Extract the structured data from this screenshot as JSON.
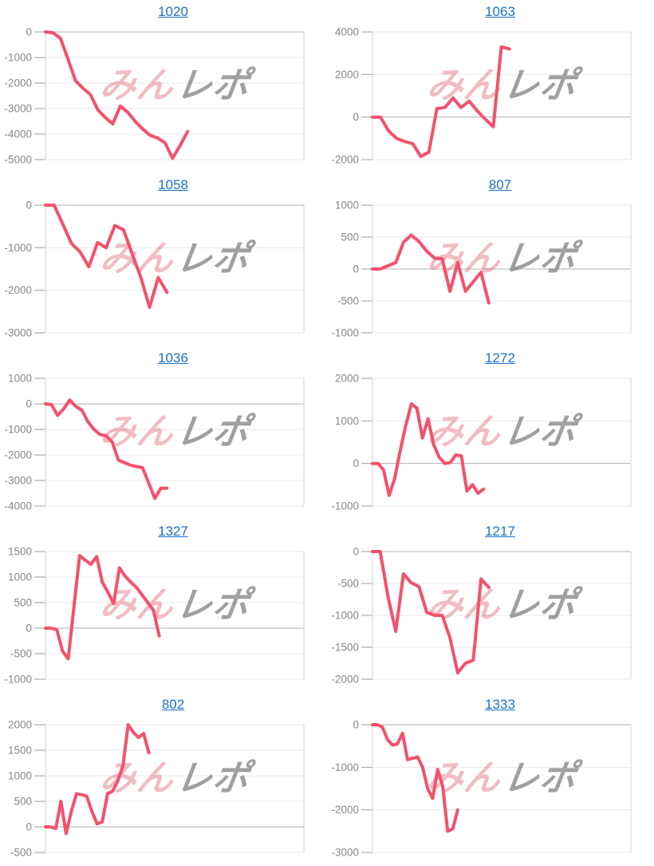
{
  "page": {
    "background": "#ffffff"
  },
  "colors": {
    "line": "#f4516c",
    "title_link": "#1b70c8",
    "axis_label": "#888888",
    "gridline": "#e8e8e8",
    "zero_line": "#b0b0b0",
    "tick": "#9e9e9e",
    "axis": "#d4d4d4",
    "watermark_pink": "rgba(222,95,110,0.42)",
    "watermark_gray": "rgba(120,120,120,0.70)"
  },
  "watermark": {
    "pink_text": "みん",
    "gray_text": "レポ"
  },
  "chart_data": [
    {
      "title": "1020",
      "type": "line",
      "x_span": 0.55,
      "ylim": [
        -5000,
        0
      ],
      "y_ticks": [
        0,
        -1000,
        -2000,
        -3000,
        -4000,
        -5000
      ],
      "values": [
        0,
        -30,
        -250,
        -1050,
        -1900,
        -2200,
        -2450,
        -3050,
        -3350,
        -3600,
        -2900,
        -3150,
        -3500,
        -3800,
        -4050,
        -4150,
        -4350,
        -4950,
        -4450,
        -3900
      ]
    },
    {
      "title": "1063",
      "type": "line",
      "x_span": 0.53,
      "ylim": [
        -2000,
        4000
      ],
      "y_ticks": [
        4000,
        2000,
        0,
        -2000
      ],
      "values": [
        0,
        0,
        -650,
        -1000,
        -1150,
        -1250,
        -1850,
        -1650,
        400,
        450,
        900,
        450,
        750,
        300,
        -100,
        -450,
        3300,
        3200
      ]
    },
    {
      "title": "1058",
      "type": "line",
      "x_span": 0.47,
      "ylim": [
        -3000,
        0
      ],
      "y_ticks": [
        0,
        -1000,
        -2000,
        -3000
      ],
      "values": [
        0,
        0,
        -450,
        -900,
        -1100,
        -1450,
        -880,
        -1000,
        -480,
        -580,
        -1150,
        -1700,
        -2400,
        -1700,
        -2050
      ]
    },
    {
      "title": "807",
      "type": "line",
      "x_span": 0.45,
      "ylim": [
        -1000,
        1000
      ],
      "y_ticks": [
        1000,
        500,
        0,
        -500,
        -1000
      ],
      "values": [
        0,
        0,
        50,
        100,
        420,
        530,
        430,
        280,
        170,
        160,
        -350,
        100,
        -350,
        -200,
        -50,
        -530
      ]
    },
    {
      "title": "1036",
      "type": "line",
      "x_span": 0.47,
      "ylim": [
        -4000,
        1000
      ],
      "y_ticks": [
        1000,
        0,
        -1000,
        -2000,
        -3000,
        -4000
      ],
      "values": [
        0,
        -30,
        -450,
        -200,
        150,
        -100,
        -250,
        -700,
        -1000,
        -1200,
        -1250,
        -1500,
        -2200,
        -2300,
        -2400,
        -2450,
        -2500,
        -3100,
        -3700,
        -3300,
        -3300
      ]
    },
    {
      "title": "1272",
      "type": "line",
      "x_span": 0.43,
      "ylim": [
        -1000,
        2000
      ],
      "y_ticks": [
        2000,
        1000,
        0,
        -1000
      ],
      "values": [
        0,
        0,
        -150,
        -750,
        -350,
        300,
        900,
        1400,
        1300,
        600,
        1050,
        450,
        150,
        0,
        20,
        200,
        180,
        -650,
        -500,
        -700,
        -600
      ]
    },
    {
      "title": "1327",
      "type": "line",
      "x_span": 0.44,
      "ylim": [
        -1000,
        1500
      ],
      "y_ticks": [
        1500,
        1000,
        500,
        0,
        -500,
        -1000
      ],
      "values": [
        0,
        0,
        -30,
        -450,
        -600,
        400,
        1420,
        1330,
        1250,
        1400,
        900,
        700,
        480,
        1180,
        1020,
        900,
        800,
        650,
        500,
        350,
        -150
      ]
    },
    {
      "title": "1217",
      "type": "line",
      "x_span": 0.45,
      "ylim": [
        -2000,
        0
      ],
      "y_ticks": [
        0,
        -500,
        -1000,
        -1500,
        -2000
      ],
      "values": [
        0,
        0,
        -700,
        -1250,
        -350,
        -490,
        -550,
        -950,
        -1000,
        -1000,
        -1350,
        -1900,
        -1750,
        -1700,
        -430,
        -560
      ]
    },
    {
      "title": "802",
      "type": "line",
      "x_span": 0.4,
      "ylim": [
        -500,
        2000
      ],
      "y_ticks": [
        2000,
        1500,
        1000,
        500,
        0,
        -500
      ],
      "values": [
        0,
        0,
        -30,
        500,
        -130,
        300,
        650,
        630,
        600,
        300,
        60,
        100,
        650,
        700,
        900,
        1200,
        2000,
        1850,
        1750,
        1830,
        1450
      ]
    },
    {
      "title": "1333",
      "type": "line",
      "x_span": 0.33,
      "ylim": [
        -3000,
        0
      ],
      "y_ticks": [
        0,
        -1000,
        -2000,
        -3000
      ],
      "values": [
        0,
        0,
        -60,
        -350,
        -480,
        -450,
        -200,
        -820,
        -790,
        -760,
        -1000,
        -1500,
        -1730,
        -1050,
        -1450,
        -2500,
        -2450,
        -2000
      ]
    }
  ]
}
